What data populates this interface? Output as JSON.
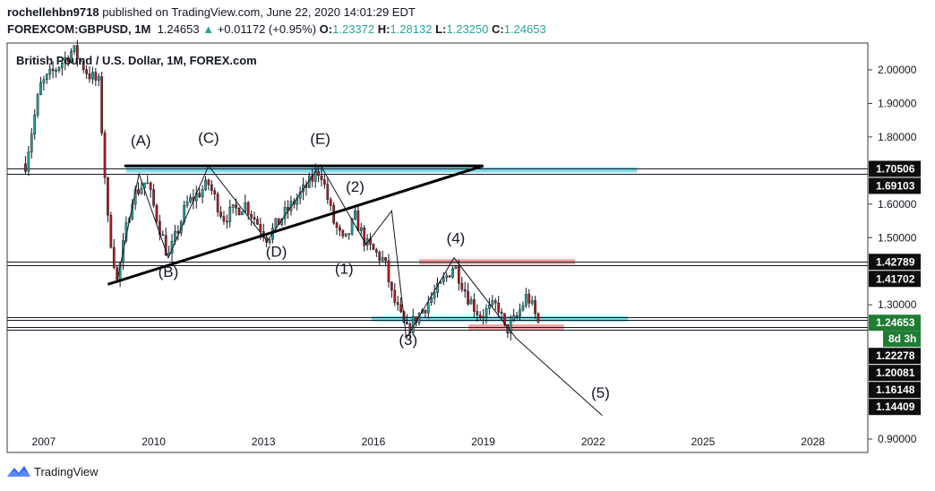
{
  "header": {
    "user": "rochellehbn9718",
    "published": "published on TradingView.com, June 22, 2020 14:01:29 EDT",
    "symbol": "FOREXCOM:GBPUSD, 1M",
    "last": "1.24653",
    "arrow": "▲",
    "change": "+0.01172 (+0.95%)",
    "o_label": "O:",
    "o": "1.23372",
    "h_label": "H:",
    "h": "1.28132",
    "l_label": "L:",
    "l": "1.23250",
    "c_label": "C:",
    "c": "1.24653",
    "up_color": "#26a69a"
  },
  "footer": {
    "brand": "TradingView"
  },
  "chart_data": {
    "type": "candlestick",
    "title": "British Pound / U.S. Dollar, 1M, FOREX.com",
    "xlim": [
      2006.0,
      2029.5
    ],
    "ylim": [
      0.86,
      2.08
    ],
    "x_ticks": [
      "2007",
      "2010",
      "2013",
      "2016",
      "2019",
      "2022",
      "2025",
      "2028"
    ],
    "x_tick_values": [
      2007,
      2010,
      2013,
      2016,
      2019,
      2022,
      2025,
      2028
    ],
    "y_ticks": [
      {
        "value": 2.0,
        "label": "2.00000"
      },
      {
        "value": 1.9,
        "label": "1.90000"
      },
      {
        "value": 1.8,
        "label": "1.80000"
      },
      {
        "value": 1.6,
        "label": "1.60000"
      },
      {
        "value": 1.5,
        "label": "1.50000"
      },
      {
        "value": 1.3,
        "label": "1.30000"
      },
      {
        "value": 0.9,
        "label": "0.90000"
      }
    ],
    "price_labels": [
      {
        "value": 1.70506,
        "label": "1.70506",
        "style": "dark"
      },
      {
        "value": 1.69103,
        "label": "1.69103",
        "style": "dark"
      },
      {
        "value": 1.42789,
        "label": "1.42789",
        "style": "dark"
      },
      {
        "value": 1.41702,
        "label": "1.41702",
        "style": "dark"
      },
      {
        "value": 1.24653,
        "label": "1.24653",
        "style": "green"
      },
      {
        "value": 1.22278,
        "label": "1.22278",
        "style": "dark"
      },
      {
        "value": 1.20081,
        "label": "1.20081",
        "style": "dark"
      },
      {
        "value": 1.16148,
        "label": "1.16148",
        "style": "dark"
      },
      {
        "value": 1.14409,
        "label": "1.14409",
        "style": "dark"
      }
    ],
    "countdown": "8d 3h",
    "horizontal_lines": [
      1.70506,
      1.69103,
      1.42789,
      1.41702,
      1.2622,
      1.2563,
      1.2347,
      1.2265
    ],
    "zones": [
      {
        "x1": 2009.25,
        "x2": 2023.2,
        "y": 1.702,
        "color": "#80deea"
      },
      {
        "x1": 2017.25,
        "x2": 2021.5,
        "y": 1.428,
        "color": "#f4a3a3"
      },
      {
        "x1": 2015.95,
        "x2": 2022.95,
        "y": 1.258,
        "color": "#80deea"
      },
      {
        "x1": 2018.6,
        "x2": 2021.2,
        "y": 1.2335,
        "color": "#f4a3a3"
      }
    ],
    "trendlines": [
      {
        "x1": 2009.2,
        "y1": 1.714,
        "x2": 2019.0,
        "y2": 1.714
      },
      {
        "x1": 2008.75,
        "y1": 1.361,
        "x2": 2019.0,
        "y2": 1.714
      }
    ],
    "wave_path": [
      [
        2009.0,
        1.37
      ],
      [
        2009.6,
        1.69
      ],
      [
        2010.4,
        1.44
      ],
      [
        2011.5,
        1.714
      ],
      [
        2013.1,
        1.49
      ],
      [
        2014.55,
        1.717
      ],
      [
        2015.8,
        1.48
      ],
      [
        2016.5,
        1.58
      ],
      [
        2016.9,
        1.2
      ],
      [
        2018.2,
        1.44
      ],
      [
        2019.9,
        1.2
      ],
      [
        2022.25,
        0.97
      ]
    ],
    "wave_labels": [
      {
        "text": "(A)",
        "x": 2009.65,
        "y": 1.775
      },
      {
        "text": "(B)",
        "x": 2010.4,
        "y": 1.383
      },
      {
        "text": "(C)",
        "x": 2011.5,
        "y": 1.783
      },
      {
        "text": "(D)",
        "x": 2013.35,
        "y": 1.443
      },
      {
        "text": "(E)",
        "x": 2014.55,
        "y": 1.78
      },
      {
        "text": "(2)",
        "x": 2015.5,
        "y": 1.637
      },
      {
        "text": "(1)",
        "x": 2015.2,
        "y": 1.392
      },
      {
        "text": "(4)",
        "x": 2018.25,
        "y": 1.483
      },
      {
        "text": "(3)",
        "x": 2016.95,
        "y": 1.18
      },
      {
        "text": "(5)",
        "x": 2022.2,
        "y": 1.023
      }
    ],
    "anchors": [
      [
        2006.5,
        1.72
      ],
      [
        2006.9,
        1.95
      ],
      [
        2007.3,
        2.0
      ],
      [
        2007.8,
        2.06
      ],
      [
        2008.2,
        1.99
      ],
      [
        2008.5,
        1.96
      ],
      [
        2008.75,
        1.55
      ],
      [
        2009.0,
        1.37
      ],
      [
        2009.4,
        1.62
      ],
      [
        2009.8,
        1.67
      ],
      [
        2010.4,
        1.44
      ],
      [
        2010.9,
        1.6
      ],
      [
        2011.5,
        1.66
      ],
      [
        2011.9,
        1.56
      ],
      [
        2012.5,
        1.6
      ],
      [
        2013.1,
        1.5
      ],
      [
        2013.5,
        1.56
      ],
      [
        2014.55,
        1.705
      ],
      [
        2014.9,
        1.55
      ],
      [
        2015.2,
        1.48
      ],
      [
        2015.5,
        1.56
      ],
      [
        2015.8,
        1.48
      ],
      [
        2016.3,
        1.43
      ],
      [
        2016.5,
        1.33
      ],
      [
        2016.9,
        1.22
      ],
      [
        2017.3,
        1.28
      ],
      [
        2017.8,
        1.35
      ],
      [
        2018.2,
        1.42
      ],
      [
        2018.6,
        1.32
      ],
      [
        2018.9,
        1.27
      ],
      [
        2019.4,
        1.3
      ],
      [
        2019.6,
        1.22
      ],
      [
        2019.9,
        1.26
      ],
      [
        2020.2,
        1.33
      ],
      [
        2020.5,
        1.246
      ]
    ]
  }
}
